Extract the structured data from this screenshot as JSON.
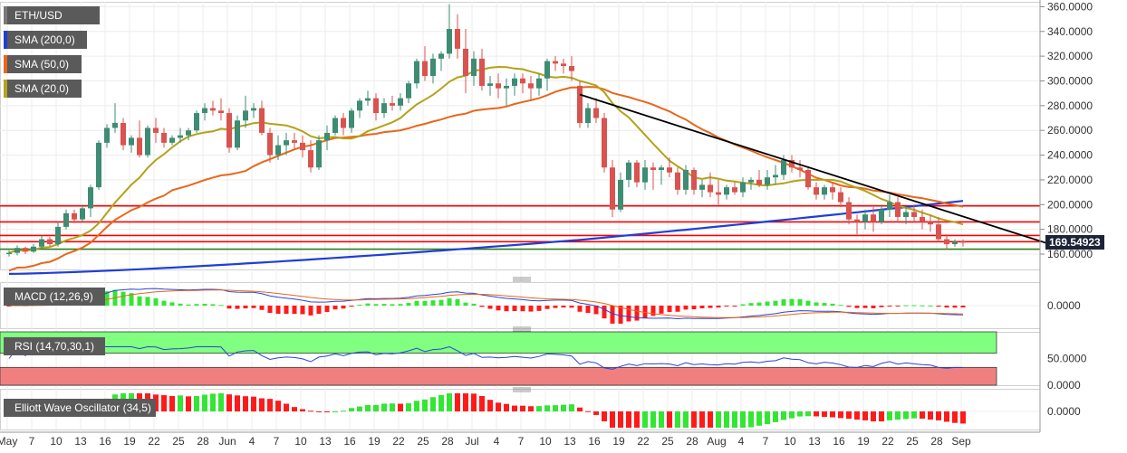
{
  "legend": {
    "symbol": {
      "label": "ETH/USD",
      "color": "#6b6b6b"
    },
    "sma200": {
      "label": "SMA (200,0)",
      "color": "#1f3fd6"
    },
    "sma50": {
      "label": "SMA (50,0)",
      "color": "#e8671a"
    },
    "sma20": {
      "label": "SMA (20,0)",
      "color": "#b3a21a"
    }
  },
  "last_price": "169.54923",
  "panels": {
    "macd": {
      "label": "MACD (12,26,9)"
    },
    "rsi": {
      "label": "RSI (14,70,30,1)"
    },
    "ewo": {
      "label": "Elliott Wave Oscillator (34,5)"
    }
  },
  "colors": {
    "up": "#3d8c73",
    "down": "#d9534f",
    "sma200": "#1f3fd6",
    "sma50": "#e8671a",
    "sma20": "#b3a21a",
    "support": "#ff0000",
    "support_green": "#2f7d1f",
    "trend": "#000000",
    "hist_up": "#33e633",
    "hist_down": "#ff1a1a",
    "rsi_over": "#80ff80",
    "rsi_under": "#f08080"
  },
  "chart_data": [
    {
      "type": "candlestick",
      "title": "ETH/USD",
      "x_tick_labels": [
        "May",
        "7",
        "10",
        "13",
        "16",
        "19",
        "22",
        "25",
        "28",
        "Jun",
        "4",
        "7",
        "10",
        "13",
        "16",
        "19",
        "22",
        "25",
        "28",
        "Jul",
        "4",
        "7",
        "10",
        "13",
        "16",
        "19",
        "22",
        "25",
        "28",
        "Aug",
        "4",
        "7",
        "10",
        "13",
        "16",
        "19",
        "22",
        "25",
        "28",
        "Sep"
      ],
      "y_ticks": [
        "160.0000",
        "180.0000",
        "200.0000",
        "220.0000",
        "240.0000",
        "260.0000",
        "280.0000",
        "300.0000",
        "320.0000",
        "340.0000",
        "360.0000"
      ],
      "ylim": [
        150,
        363
      ],
      "horizontal_levels": [
        199,
        186,
        175,
        170,
        164
      ],
      "trendline": [
        {
          "day": 70,
          "price": 289
        },
        {
          "day": 121,
          "price": 168
        }
      ],
      "candles": [
        [
          160,
          163,
          158,
          161
        ],
        [
          161,
          167,
          159,
          165
        ],
        [
          165,
          166,
          160,
          162
        ],
        [
          162,
          168,
          161,
          166
        ],
        [
          166,
          175,
          164,
          172
        ],
        [
          172,
          174,
          166,
          168
        ],
        [
          168,
          186,
          166,
          182
        ],
        [
          182,
          196,
          180,
          193
        ],
        [
          193,
          196,
          185,
          188
        ],
        [
          188,
          200,
          186,
          197
        ],
        [
          197,
          216,
          190,
          214
        ],
        [
          214,
          252,
          212,
          250
        ],
        [
          250,
          265,
          246,
          262
        ],
        [
          262,
          282,
          258,
          266
        ],
        [
          266,
          270,
          244,
          248
        ],
        [
          248,
          256,
          242,
          254
        ],
        [
          254,
          268,
          238,
          240
        ],
        [
          240,
          264,
          238,
          262
        ],
        [
          262,
          270,
          250,
          258
        ],
        [
          258,
          262,
          246,
          250
        ],
        [
          250,
          256,
          248,
          254
        ],
        [
          254,
          262,
          250,
          256
        ],
        [
          256,
          262,
          252,
          260
        ],
        [
          260,
          276,
          258,
          274
        ],
        [
          274,
          282,
          268,
          278
        ],
        [
          278,
          284,
          272,
          276
        ],
        [
          276,
          286,
          268,
          274
        ],
        [
          274,
          278,
          242,
          246
        ],
        [
          246,
          272,
          244,
          268
        ],
        [
          268,
          288,
          262,
          276
        ],
        [
          276,
          282,
          270,
          278
        ],
        [
          278,
          284,
          256,
          258
        ],
        [
          258,
          262,
          234,
          240
        ],
        [
          240,
          256,
          236,
          248
        ],
        [
          248,
          258,
          240,
          252
        ],
        [
          252,
          258,
          244,
          250
        ],
        [
          250,
          256,
          238,
          244
        ],
        [
          244,
          252,
          226,
          230
        ],
        [
          230,
          256,
          228,
          252
        ],
        [
          252,
          264,
          244,
          258
        ],
        [
          258,
          272,
          256,
          270
        ],
        [
          270,
          274,
          256,
          262
        ],
        [
          262,
          278,
          258,
          276
        ],
        [
          276,
          286,
          270,
          284
        ],
        [
          284,
          292,
          280,
          286
        ],
        [
          286,
          290,
          268,
          274
        ],
        [
          274,
          286,
          270,
          282
        ],
        [
          282,
          288,
          276,
          280
        ],
        [
          280,
          290,
          276,
          286
        ],
        [
          286,
          300,
          282,
          298
        ],
        [
          298,
          318,
          294,
          316
        ],
        [
          316,
          328,
          300,
          304
        ],
        [
          304,
          322,
          298,
          318
        ],
        [
          318,
          324,
          308,
          322
        ],
        [
          322,
          362,
          318,
          342
        ],
        [
          342,
          354,
          318,
          326
        ],
        [
          326,
          342,
          290,
          304
        ],
        [
          304,
          324,
          296,
          318
        ],
        [
          318,
          326,
          292,
          296
        ],
        [
          296,
          304,
          288,
          298
        ],
        [
          298,
          306,
          286,
          294
        ],
        [
          294,
          302,
          280,
          296
        ],
        [
          296,
          306,
          288,
          302
        ],
        [
          302,
          306,
          290,
          298
        ],
        [
          298,
          304,
          284,
          294
        ],
        [
          294,
          306,
          288,
          302
        ],
        [
          302,
          318,
          292,
          316
        ],
        [
          316,
          320,
          308,
          314
        ],
        [
          314,
          318,
          306,
          312
        ],
        [
          312,
          320,
          300,
          308
        ],
        [
          296,
          300,
          262,
          266
        ],
        [
          266,
          282,
          262,
          278
        ],
        [
          278,
          286,
          266,
          270
        ],
        [
          270,
          274,
          226,
          230
        ],
        [
          230,
          236,
          190,
          196
        ],
        [
          196,
          226,
          194,
          220
        ],
        [
          220,
          236,
          214,
          234
        ],
        [
          234,
          236,
          214,
          218
        ],
        [
          218,
          236,
          212,
          230
        ],
        [
          230,
          234,
          212,
          228
        ],
        [
          228,
          232,
          216,
          230
        ],
        [
          230,
          238,
          222,
          226
        ],
        [
          226,
          230,
          208,
          212
        ],
        [
          212,
          232,
          208,
          228
        ],
        [
          228,
          230,
          208,
          212
        ],
        [
          212,
          220,
          206,
          216
        ],
        [
          216,
          226,
          206,
          210
        ],
        [
          210,
          220,
          200,
          208
        ],
        [
          208,
          216,
          204,
          214
        ],
        [
          214,
          218,
          208,
          210
        ],
        [
          210,
          222,
          206,
          218
        ],
        [
          218,
          222,
          212,
          220
        ],
        [
          220,
          228,
          214,
          216
        ],
        [
          216,
          228,
          212,
          222
        ],
        [
          222,
          232,
          216,
          224
        ],
        [
          224,
          240,
          220,
          236
        ],
        [
          236,
          240,
          226,
          230
        ],
        [
          230,
          236,
          222,
          228
        ],
        [
          228,
          230,
          212,
          214
        ],
        [
          214,
          218,
          204,
          208
        ],
        [
          208,
          216,
          204,
          214
        ],
        [
          214,
          218,
          204,
          210
        ],
        [
          210,
          214,
          198,
          202
        ],
        [
          202,
          206,
          184,
          188
        ],
        [
          188,
          192,
          176,
          186
        ],
        [
          186,
          196,
          180,
          192
        ],
        [
          192,
          198,
          178,
          186
        ],
        [
          186,
          200,
          184,
          196
        ],
        [
          196,
          208,
          190,
          202
        ],
        [
          202,
          206,
          186,
          190
        ],
        [
          190,
          198,
          184,
          194
        ],
        [
          194,
          200,
          186,
          190
        ],
        [
          190,
          196,
          180,
          186
        ],
        [
          186,
          192,
          178,
          184
        ],
        [
          184,
          190,
          170,
          172
        ],
        [
          172,
          176,
          164,
          168
        ],
        [
          168,
          172,
          166,
          170
        ],
        [
          170,
          172,
          166,
          169.5
        ]
      ]
    },
    {
      "type": "line",
      "title": "MACD (12,26,9)",
      "y_ticks": [
        "0.0000"
      ]
    },
    {
      "type": "line",
      "title": "RSI (14,70,30,1)",
      "y_ticks": [
        "0.0000",
        "50.0000"
      ],
      "ylim": [
        0,
        100
      ],
      "bands": {
        "overbought": 70,
        "oversold": 30
      }
    },
    {
      "type": "bar",
      "title": "Elliott Wave Oscillator (34,5)",
      "y_ticks": [
        "0.0000"
      ]
    }
  ]
}
